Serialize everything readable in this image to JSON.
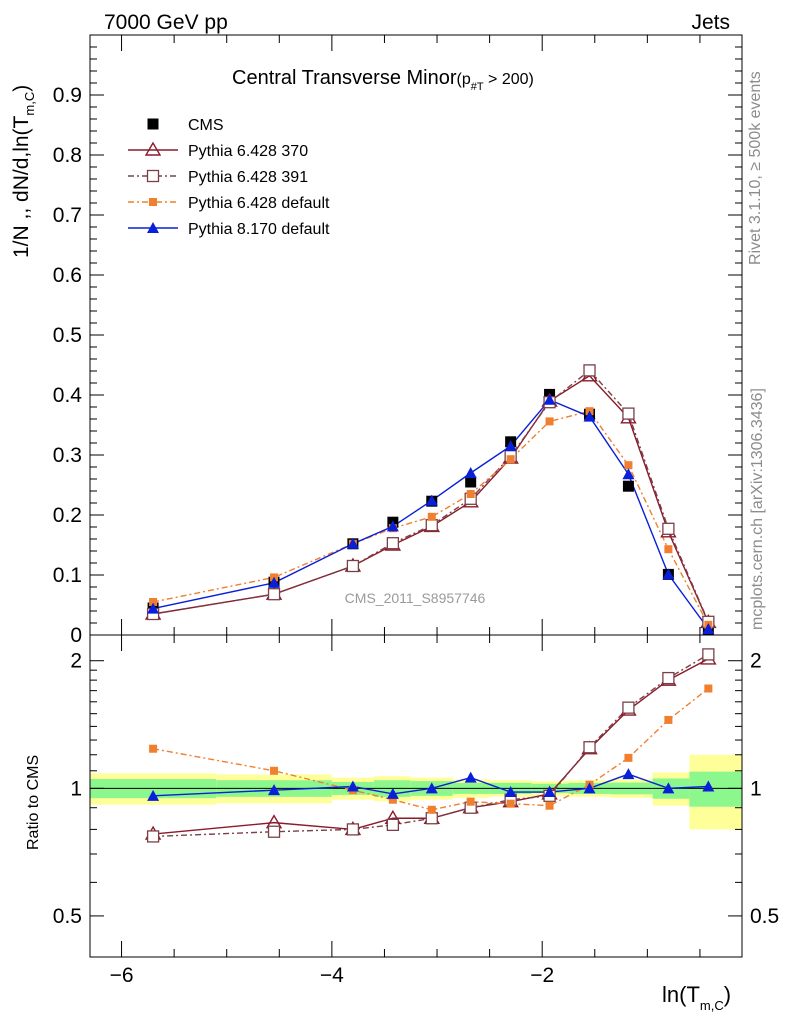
{
  "header": {
    "left": "7000 GeV pp",
    "right": "Jets"
  },
  "side": {
    "rivet": "Rivet 3.1.10, ≥ 500k events",
    "mcplots": "mcplots.cern.ch [arXiv:1306.3436]"
  },
  "colors": {
    "cms": "#000000",
    "p370": "#8b1a2b",
    "p391": "#7a4048",
    "p6def": "#f07f30",
    "p8def": "#0a20d8",
    "band_inner": "#8cf78c",
    "band_outer": "#ffff99"
  },
  "chart_data": [
    {
      "type": "scatter",
      "title": "Central Transverse Minor",
      "title_suffix": {
        "prefix": "(p",
        "sub": "#T",
        "suffix": " > 200)"
      },
      "ylabel": {
        "main": "1/N ,, dN/d,ln(T",
        "sub": "m,C",
        "close": ")"
      },
      "watermark": "CMS_2011_S8957746",
      "xlim": [
        -6.3,
        -0.1
      ],
      "ylim": [
        0,
        1
      ],
      "yticks": [
        "0",
        "0.1",
        "0.2",
        "0.3",
        "0.4",
        "0.5",
        "0.6",
        "0.7",
        "0.8",
        "0.9"
      ],
      "x": [
        -5.7,
        -4.55,
        -3.8,
        -3.42,
        -3.05,
        -2.68,
        -2.3,
        -1.93,
        -1.55,
        -1.18,
        -0.8,
        -0.42
      ],
      "series": [
        {
          "name": "CMS",
          "values": [
            0.045,
            0.088,
            0.152,
            0.188,
            0.223,
            0.255,
            0.322,
            0.401,
            0.368,
            0.248,
            0.101,
            0.01
          ]
        },
        {
          "name": "Pythia 6.428 370",
          "values": [
            0.035,
            0.068,
            0.115,
            0.15,
            0.181,
            0.222,
            0.295,
            0.39,
            0.432,
            0.362,
            0.172,
            0.021
          ]
        },
        {
          "name": "Pythia 6.428 391",
          "values": [
            0.035,
            0.068,
            0.115,
            0.153,
            0.183,
            0.227,
            0.298,
            0.388,
            0.441,
            0.369,
            0.177,
            0.022
          ]
        },
        {
          "name": "Pythia 6.428 default",
          "values": [
            0.055,
            0.096,
            0.152,
            0.178,
            0.197,
            0.235,
            0.293,
            0.356,
            0.373,
            0.283,
            0.143,
            0.017
          ]
        },
        {
          "name": "Pythia 8.170 default",
          "values": [
            0.044,
            0.087,
            0.152,
            0.181,
            0.224,
            0.27,
            0.315,
            0.392,
            0.364,
            0.268,
            0.101,
            0.01
          ]
        }
      ],
      "legend_position": "top-left"
    },
    {
      "type": "scatter",
      "ylabel": "Ratio to CMS",
      "xlabel": {
        "main": "ln(T",
        "sub": "m,C",
        "close": ")"
      },
      "xlim": [
        -6.3,
        -0.1
      ],
      "ylim": [
        0.4,
        2.3
      ],
      "ylog": true,
      "xticks": [
        "−6",
        "−4",
        "−2"
      ],
      "yticks": [
        "0.5",
        "1",
        "2"
      ],
      "x": [
        -5.7,
        -4.55,
        -3.8,
        -3.42,
        -3.05,
        -2.68,
        -2.3,
        -1.93,
        -1.55,
        -1.18,
        -0.8,
        -0.42
      ],
      "band_edges": [
        -6.3,
        -5.1,
        -4.0,
        -3.6,
        -3.25,
        -2.85,
        -2.5,
        -2.1,
        -1.75,
        -1.35,
        -0.95,
        -0.6,
        -0.1
      ],
      "band_inner": [
        0.052,
        0.045,
        0.035,
        0.045,
        0.04,
        0.03,
        0.03,
        0.025,
        0.03,
        0.032,
        0.055,
        0.095
      ],
      "band_outer": [
        0.085,
        0.078,
        0.06,
        0.068,
        0.06,
        0.05,
        0.045,
        0.04,
        0.045,
        0.05,
        0.09,
        0.2
      ],
      "series": [
        {
          "name": "Pythia 6.428 370",
          "values": [
            0.78,
            0.83,
            0.8,
            0.85,
            0.85,
            0.9,
            0.93,
            0.97,
            1.24,
            1.53,
            1.8,
            2.02
          ]
        },
        {
          "name": "Pythia 6.428 391",
          "values": [
            0.77,
            0.79,
            0.8,
            0.82,
            0.85,
            0.9,
            0.94,
            0.96,
            1.25,
            1.55,
            1.82,
            2.07
          ]
        },
        {
          "name": "Pythia 6.428 default",
          "values": [
            1.24,
            1.1,
            0.99,
            0.94,
            0.89,
            0.93,
            0.92,
            0.91,
            1.02,
            1.18,
            1.45,
            1.72
          ]
        },
        {
          "name": "Pythia 8.170 default",
          "values": [
            0.96,
            0.99,
            1.01,
            0.97,
            1.0,
            1.06,
            0.98,
            0.98,
            1.0,
            1.08,
            1.0,
            1.01
          ]
        }
      ]
    }
  ]
}
